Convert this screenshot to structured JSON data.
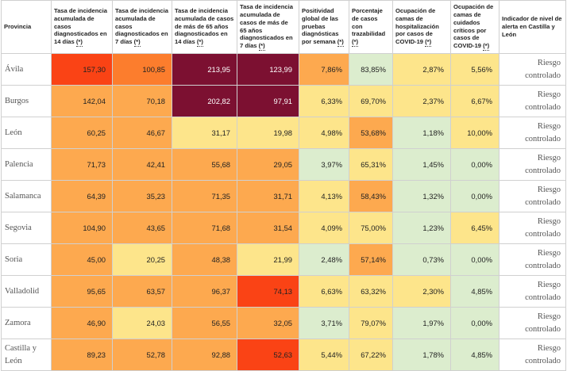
{
  "columns": [
    {
      "label": "Provincia",
      "note": ""
    },
    {
      "label": "Tasa de incidencia acumulada de casos diagnosticados en 14 días",
      "note": "(*)"
    },
    {
      "label": "Tasa de incidencia acumulada de casos diagnosticados en 7 días",
      "note": "(*)"
    },
    {
      "label": "Tasa de incidencia acumulada de casos de más de 65 años diagnosticados en 14 días",
      "note": "(*)"
    },
    {
      "label": "Tasa de incidencia acumulada de casos de más de 65 años diagnosticados en 7 días",
      "note": "(*)"
    },
    {
      "label": "Positividad global de las pruebas diagnósticas por semana",
      "note": "(*)"
    },
    {
      "label": "Porcentaje de casos con trazabilidad",
      "note": "(*)"
    },
    {
      "label": "Ocupación de camas de hospitalización por casos de COVID-19",
      "note": "(*)"
    },
    {
      "label": "Ocupación de camas de cuidados críticos por casos de COVID-19",
      "note": "(*)"
    },
    {
      "label": "Indicador de nivel de alerta en Castilla y León",
      "note": ""
    }
  ],
  "rows": [
    {
      "province": "Ávila",
      "values": [
        "157,30",
        "100,85",
        "213,95",
        "123,99",
        "7,86%",
        "83,85%",
        "2,87%",
        "5,56%"
      ],
      "colors": [
        "#fa4315",
        "#fc7d2d",
        "#7c1031",
        "#7c1031",
        "#fda94f",
        "#dcedce",
        "#fde58b",
        "#fde58b"
      ],
      "level": "Riesgo controlado"
    },
    {
      "province": "Burgos",
      "values": [
        "142,04",
        "70,18",
        "202,82",
        "97,91",
        "6,33%",
        "69,70%",
        "2,37%",
        "6,67%"
      ],
      "colors": [
        "#fda94f",
        "#fda94f",
        "#7c1031",
        "#7c1031",
        "#fde58b",
        "#fde58b",
        "#fde58b",
        "#fde58b"
      ],
      "level": "Riesgo controlado"
    },
    {
      "province": "León",
      "values": [
        "60,25",
        "46,67",
        "31,17",
        "19,98",
        "4,98%",
        "53,68%",
        "1,18%",
        "10,00%"
      ],
      "colors": [
        "#fda94f",
        "#fda94f",
        "#fde58b",
        "#fde58b",
        "#fde58b",
        "#fda94f",
        "#dcedce",
        "#fde58b"
      ],
      "level": "Riesgo controlado"
    },
    {
      "province": "Palencia",
      "values": [
        "71,73",
        "42,41",
        "55,68",
        "29,05",
        "3,97%",
        "65,31%",
        "1,45%",
        "0,00%"
      ],
      "colors": [
        "#fda94f",
        "#fda94f",
        "#fda94f",
        "#fda94f",
        "#dcedce",
        "#fde58b",
        "#dcedce",
        "#dcedce"
      ],
      "level": "Riesgo controlado"
    },
    {
      "province": "Salamanca",
      "values": [
        "64,39",
        "35,23",
        "71,35",
        "31,71",
        "4,13%",
        "58,43%",
        "1,32%",
        "0,00%"
      ],
      "colors": [
        "#fda94f",
        "#fda94f",
        "#fda94f",
        "#fda94f",
        "#fde58b",
        "#fda94f",
        "#dcedce",
        "#dcedce"
      ],
      "level": "Riesgo controlado"
    },
    {
      "province": "Segovia",
      "values": [
        "104,90",
        "43,65",
        "71,68",
        "31,54",
        "4,09%",
        "75,00%",
        "1,23%",
        "6,45%"
      ],
      "colors": [
        "#fda94f",
        "#fda94f",
        "#fda94f",
        "#fda94f",
        "#fde58b",
        "#fde58b",
        "#dcedce",
        "#fde58b"
      ],
      "level": "Riesgo controlado"
    },
    {
      "province": "Soria",
      "values": [
        "45,00",
        "20,25",
        "48,38",
        "21,99",
        "2,48%",
        "57,14%",
        "0,73%",
        "0,00%"
      ],
      "colors": [
        "#fda94f",
        "#fde58b",
        "#fda94f",
        "#fde58b",
        "#dcedce",
        "#fda94f",
        "#dcedce",
        "#dcedce"
      ],
      "level": "Riesgo controlado"
    },
    {
      "province": "Valladolid",
      "values": [
        "95,65",
        "63,57",
        "96,37",
        "74,13",
        "6,63%",
        "63,32%",
        "2,30%",
        "4,85%"
      ],
      "colors": [
        "#fda94f",
        "#fda94f",
        "#fda94f",
        "#fa4315",
        "#fde58b",
        "#fde58b",
        "#fde58b",
        "#dcedce"
      ],
      "level": "Riesgo controlado"
    },
    {
      "province": "Zamora",
      "values": [
        "46,90",
        "24,03",
        "56,55",
        "32,05",
        "3,71%",
        "79,07%",
        "1,97%",
        "0,00%"
      ],
      "colors": [
        "#fda94f",
        "#fde58b",
        "#fda94f",
        "#fda94f",
        "#dcedce",
        "#fde58b",
        "#dcedce",
        "#dcedce"
      ],
      "level": "Riesgo controlado"
    },
    {
      "province": "Castilla y León",
      "values": [
        "89,23",
        "52,78",
        "92,88",
        "52,63",
        "5,44%",
        "67,22%",
        "1,78%",
        "4,85%"
      ],
      "colors": [
        "#fda94f",
        "#fda94f",
        "#fda94f",
        "#fa4315",
        "#fde58b",
        "#fde58b",
        "#dcedce",
        "#dcedce"
      ],
      "level": "Riesgo controlado"
    }
  ]
}
